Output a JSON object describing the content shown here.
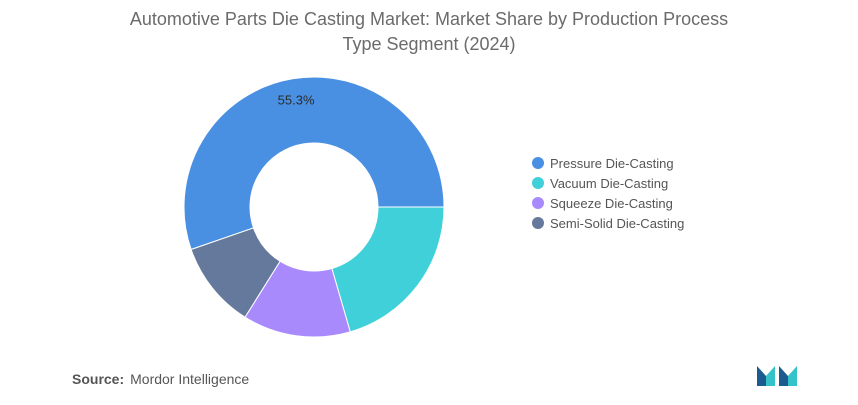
{
  "chart_data": {
    "type": "pie",
    "title": "Automotive Parts Die Casting Market: Market Share by Production Process",
    "subtitle": "Type Segment (2024)",
    "categories": [
      "Pressure Die-Casting",
      "Vacuum Die-Casting",
      "Squeeze Die-Casting",
      "Semi-Solid Die-Casting"
    ],
    "values": [
      55.3,
      20.5,
      13.4,
      10.8
    ],
    "labels": [
      "55.3%",
      "",
      "",
      ""
    ],
    "colors": [
      "#4a90e2",
      "#3fd0d9",
      "#a98afc",
      "#64799b"
    ],
    "donut": true,
    "legend_position": "right"
  },
  "source": {
    "label": "Source:",
    "text": "Mordor Intelligence"
  },
  "logo": {
    "colors": [
      "#1c5b8e",
      "#33c3c8"
    ]
  }
}
